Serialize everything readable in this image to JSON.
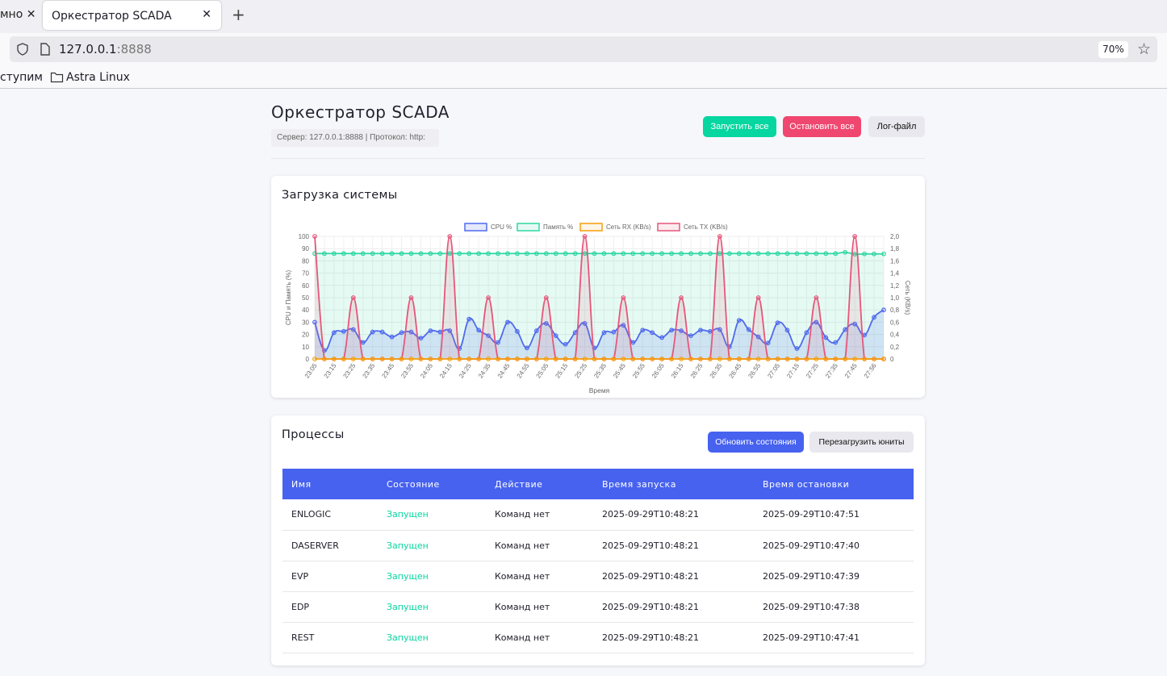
{
  "browser": {
    "prev_tab": "мно",
    "active_tab": "Оркестратор SCADA",
    "url_host": "127.0.0.1",
    "url_port": ":8888",
    "zoom": "70%",
    "bookmarks": [
      "ступим",
      "Astra Linux"
    ]
  },
  "header": {
    "title": "Оркестратор SCADA",
    "server_info": "Сервер: 127.0.0.1:8888 | Протокол: http:",
    "start_all": "Запустить все",
    "stop_all": "Остановить все",
    "log_file": "Лог-файл"
  },
  "colors": {
    "start": "#06d6a0",
    "stop": "#ef476f",
    "primary": "#4762ef",
    "cpu": "#4f6bed",
    "memory": "#2ed8a3",
    "rx": "#f59e0b",
    "tx": "#e5577a"
  },
  "load": {
    "title": "Загрузка системы"
  },
  "chart_data": {
    "type": "line",
    "legend_position": "top",
    "xlabel": "Время",
    "ylabel": "CPU и Память (%)",
    "y2label": "Сеть (KB/s)",
    "ylim": [
      0,
      100
    ],
    "y2lim": [
      0,
      2.0
    ],
    "yticks": [
      "0",
      "10",
      "20",
      "30",
      "40",
      "50",
      "60",
      "70",
      "80",
      "90",
      "100"
    ],
    "y2ticks": [
      "0",
      "0,2",
      "0,4",
      "0,6",
      "0,8",
      "1,0",
      "1,2",
      "1,4",
      "1,6",
      "1,8",
      "2,0"
    ],
    "x_tick_labels": [
      "23:05",
      "23:15",
      "23:25",
      "23:35",
      "23:45",
      "23:55",
      "24:05",
      "24:15",
      "24:25",
      "24:35",
      "24:45",
      "24:55",
      "25:05",
      "25:15",
      "25:25",
      "25:35",
      "25:45",
      "25:55",
      "26:05",
      "26:15",
      "26:25",
      "26:35",
      "26:45",
      "26:55",
      "27:05",
      "27:15",
      "27:25",
      "27:35",
      "27:45",
      "27:56"
    ],
    "grid": true,
    "series": [
      {
        "name": "CPU %",
        "axis": "left",
        "values": [
          30,
          7,
          21.5,
          22.5,
          24,
          13.5,
          22,
          22,
          18,
          21.5,
          22,
          17,
          23,
          22,
          23,
          8.5,
          32.5,
          23.5,
          19,
          13.5,
          30,
          22.5,
          9,
          23,
          29,
          19,
          12,
          21.5,
          29,
          9,
          21.5,
          22,
          27.5,
          13.5,
          23.5,
          21.5,
          17.5,
          23.5,
          23,
          19,
          23.5,
          22.5,
          24,
          10,
          31.5,
          24,
          18,
          13,
          29.5,
          23.5,
          8.5,
          21.5,
          30,
          17.5,
          13.5,
          24,
          28.5,
          19.5,
          34,
          40
        ]
      },
      {
        "name": "Память %",
        "axis": "left",
        "values": [
          86,
          86,
          86,
          86,
          86,
          86,
          86,
          86,
          86,
          86,
          86,
          86,
          86,
          86,
          86,
          86,
          86,
          86,
          86,
          86,
          86,
          86,
          86,
          86,
          86,
          86,
          86,
          86,
          86,
          86,
          86,
          86,
          86,
          86,
          86,
          86,
          86,
          86,
          86,
          86,
          86,
          86,
          86,
          86,
          86,
          86,
          86,
          86,
          86,
          86,
          86,
          86,
          86,
          86,
          86,
          87,
          85.5,
          85.7,
          85.7,
          85.7
        ]
      },
      {
        "name": "Сеть RX (KB/s)",
        "axis": "right",
        "values": [
          0,
          0,
          0,
          0,
          0,
          0,
          0,
          0,
          0,
          0,
          0,
          0,
          0,
          0,
          0,
          0,
          0,
          0,
          0,
          0,
          0,
          0,
          0,
          0,
          0,
          0,
          0,
          0,
          0,
          0,
          0,
          0,
          0,
          0,
          0,
          0,
          0,
          0,
          0,
          0,
          0,
          0,
          0,
          0,
          0,
          0,
          0,
          0,
          0,
          0,
          0,
          0,
          0,
          0,
          0,
          0,
          0,
          0,
          0,
          0
        ]
      },
      {
        "name": "Сеть TX (KB/s)",
        "axis": "right",
        "values": [
          2,
          0,
          0,
          0,
          1,
          0,
          0,
          0,
          0,
          0,
          1,
          0,
          0,
          0,
          2,
          0,
          0,
          0,
          1,
          0,
          0,
          0,
          0,
          0,
          1,
          0,
          0,
          0,
          2,
          0,
          0,
          0,
          1,
          0,
          0,
          0,
          0,
          0,
          1,
          0,
          0,
          0,
          2,
          0,
          0,
          0,
          1,
          0,
          0,
          0,
          0,
          0,
          1,
          0,
          0,
          0,
          2,
          0,
          0,
          0
        ]
      }
    ]
  },
  "processes": {
    "title": "Процессы",
    "refresh": "Обновить состояния",
    "reload_units": "Перезагрузить юниты",
    "columns": [
      "Имя",
      "Состояние",
      "Действие",
      "Время запуска",
      "Время остановки"
    ],
    "rows": [
      [
        "ENLOGIC",
        "Запущен",
        "Команд нет",
        "2025-09-29T10:48:21",
        "2025-09-29T10:47:51"
      ],
      [
        "DASERVER",
        "Запущен",
        "Команд нет",
        "2025-09-29T10:48:21",
        "2025-09-29T10:47:40"
      ],
      [
        "EVP",
        "Запущен",
        "Команд нет",
        "2025-09-29T10:48:21",
        "2025-09-29T10:47:39"
      ],
      [
        "EDP",
        "Запущен",
        "Команд нет",
        "2025-09-29T10:48:21",
        "2025-09-29T10:47:38"
      ],
      [
        "REST",
        "Запущен",
        "Команд нет",
        "2025-09-29T10:48:21",
        "2025-09-29T10:47:41"
      ]
    ]
  }
}
